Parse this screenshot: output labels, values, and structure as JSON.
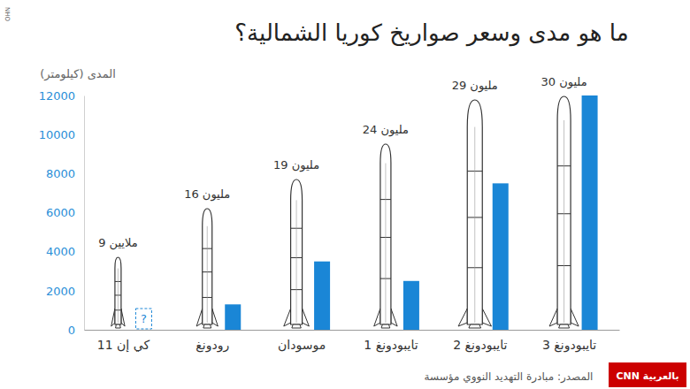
{
  "chart_data": {
    "type": "bar",
    "title": "ما هو مدى وسعر صواريخ كوريا الشمالية؟",
    "y_label": "المدى (كيلومتر)",
    "categories": [
      "كي إن 11",
      "رودونغ",
      "موسودان",
      "تايبودونغ 1",
      "تايبودونغ 2",
      "تايبودونغ 3"
    ],
    "values": [
      null,
      1300,
      3500,
      2500,
      7500,
      12000
    ],
    "missing_label": "?",
    "price_labels": [
      "9 ملايين",
      "16 مليون",
      "19 مليون",
      "24 مليون",
      "29 مليون",
      "30 مليون"
    ],
    "color": "#1a86d6",
    "ylim": [
      0,
      12000
    ],
    "yticks": [
      0,
      2000,
      4000,
      6000,
      8000,
      10000,
      12000
    ],
    "grid": false,
    "source": "المصدر: مبادرة التهديد النووي مؤسسة",
    "logo": "CNN بالعربية",
    "watermark": "NHO"
  }
}
